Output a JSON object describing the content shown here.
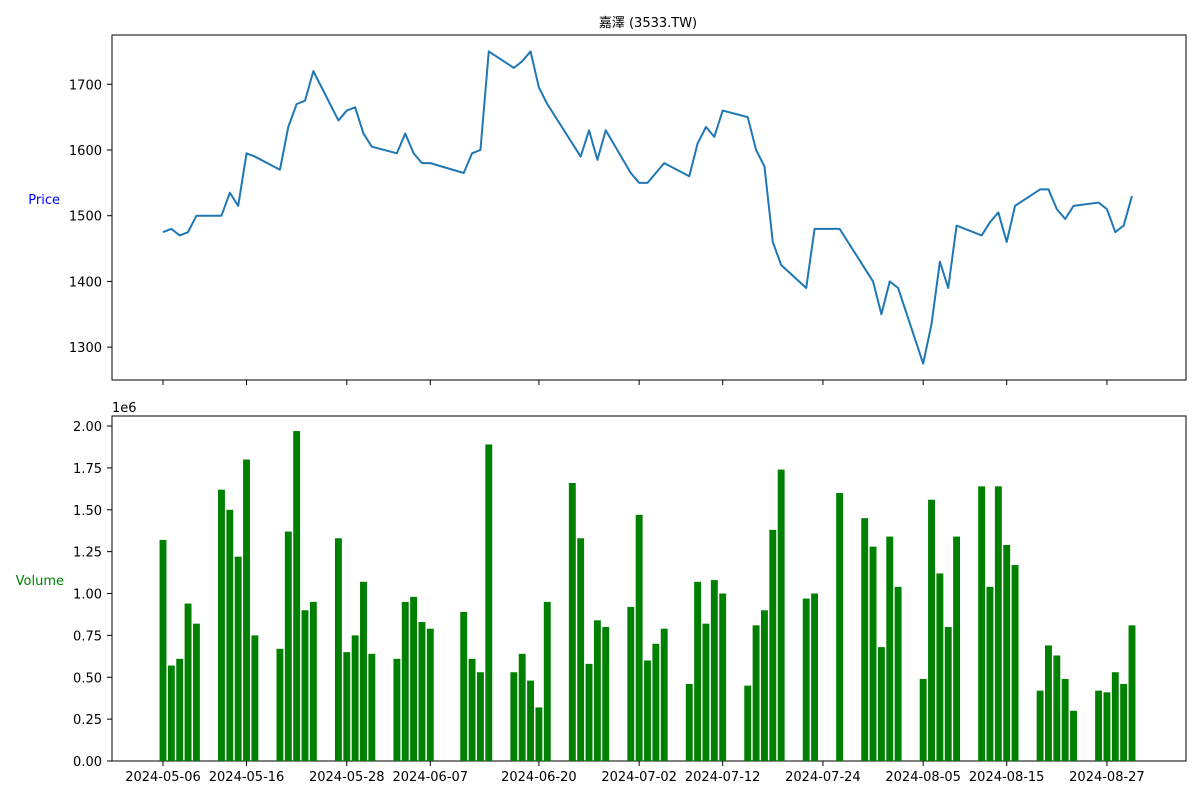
{
  "chart_data": [
    {
      "type": "line",
      "title": "嘉澤 (3533.TW)",
      "ylabel": "Price",
      "ylabel_color": "#0000ff",
      "line_color": "#1f77b4",
      "ylim": [
        1250,
        1775
      ],
      "yticks": [
        1300,
        1400,
        1500,
        1600,
        1700
      ],
      "x": [
        "2024-05-06",
        "2024-05-07",
        "2024-05-08",
        "2024-05-09",
        "2024-05-10",
        "2024-05-13",
        "2024-05-14",
        "2024-05-15",
        "2024-05-16",
        "2024-05-17",
        "2024-05-20",
        "2024-05-21",
        "2024-05-22",
        "2024-05-23",
        "2024-05-24",
        "2024-05-27",
        "2024-05-28",
        "2024-05-29",
        "2024-05-30",
        "2024-05-31",
        "2024-06-03",
        "2024-06-04",
        "2024-06-05",
        "2024-06-06",
        "2024-06-07",
        "2024-06-11",
        "2024-06-12",
        "2024-06-13",
        "2024-06-14",
        "2024-06-17",
        "2024-06-18",
        "2024-06-19",
        "2024-06-20",
        "2024-06-21",
        "2024-06-24",
        "2024-06-25",
        "2024-06-26",
        "2024-06-27",
        "2024-06-28",
        "2024-07-01",
        "2024-07-02",
        "2024-07-03",
        "2024-07-04",
        "2024-07-05",
        "2024-07-08",
        "2024-07-09",
        "2024-07-10",
        "2024-07-11",
        "2024-07-12",
        "2024-07-15",
        "2024-07-16",
        "2024-07-17",
        "2024-07-18",
        "2024-07-19",
        "2024-07-22",
        "2024-07-23",
        "2024-07-26",
        "2024-07-29",
        "2024-07-30",
        "2024-07-31",
        "2024-08-01",
        "2024-08-02",
        "2024-08-05",
        "2024-08-06",
        "2024-08-07",
        "2024-08-08",
        "2024-08-09",
        "2024-08-12",
        "2024-08-13",
        "2024-08-14",
        "2024-08-15",
        "2024-08-16",
        "2024-08-19",
        "2024-08-20",
        "2024-08-21",
        "2024-08-22",
        "2024-08-23",
        "2024-08-26",
        "2024-08-27",
        "2024-08-28",
        "2024-08-29",
        "2024-08-30"
      ],
      "values": [
        1475,
        1480,
        1470,
        1475,
        1500,
        1500,
        1535,
        1515,
        1595,
        1590,
        1570,
        1635,
        1670,
        1675,
        1720,
        1645,
        1660,
        1665,
        1625,
        1605,
        1595,
        1625,
        1595,
        1580,
        1580,
        1565,
        1595,
        1600,
        1750,
        1725,
        1735,
        1750,
        1695,
        1670,
        1610,
        1590,
        1630,
        1585,
        1630,
        1565,
        1550,
        1550,
        1565,
        1580,
        1560,
        1610,
        1635,
        1620,
        1660,
        1650,
        1600,
        1575,
        1460,
        1425,
        1390,
        1480,
        1480,
        1420,
        1400,
        1350,
        1400,
        1390,
        1275,
        1335,
        1430,
        1390,
        1485,
        1470,
        1490,
        1505,
        1460,
        1515,
        1540,
        1540,
        1510,
        1495,
        1515,
        1520,
        1510,
        1475,
        1485,
        1530
      ],
      "xticks": [
        "2024-05-06",
        "2024-05-16",
        "2024-05-28",
        "2024-06-07",
        "2024-06-20",
        "2024-07-02",
        "2024-07-12",
        "2024-07-24",
        "2024-08-05",
        "2024-08-15",
        "2024-08-27"
      ]
    },
    {
      "type": "bar",
      "ylabel": "Volume",
      "ylabel_color": "#008000",
      "bar_color": "#008000",
      "offset_label": "1e6",
      "ylim": [
        0,
        2.06
      ],
      "yticks": [
        0.0,
        0.25,
        0.5,
        0.75,
        1.0,
        1.25,
        1.5,
        1.75,
        2.0
      ],
      "ytick_labels": [
        "0.00",
        "0.25",
        "0.50",
        "0.75",
        "1.00",
        "1.25",
        "1.50",
        "1.75",
        "2.00"
      ],
      "unit": 1000000,
      "x_same_as_price": true,
      "values": [
        1.32,
        0.57,
        0.61,
        0.94,
        0.82,
        1.62,
        1.5,
        1.22,
        1.8,
        0.75,
        0.67,
        1.37,
        1.97,
        0.9,
        0.95,
        1.33,
        0.65,
        0.75,
        1.07,
        0.64,
        0.61,
        0.95,
        0.98,
        0.83,
        0.79,
        0.89,
        0.61,
        0.53,
        1.89,
        0.53,
        0.64,
        0.48,
        0.32,
        0.95,
        1.66,
        1.33,
        0.58,
        0.84,
        0.8,
        0.92,
        1.47,
        0.6,
        0.7,
        0.79,
        0.46,
        1.07,
        0.82,
        1.08,
        1.0,
        0.45,
        0.81,
        0.9,
        1.38,
        1.74,
        0.97,
        1.0,
        1.6,
        1.45,
        1.28,
        0.68,
        1.34,
        1.04,
        0.49,
        1.56,
        1.12,
        0.8,
        1.34,
        1.64,
        1.04,
        1.64,
        1.29,
        1.17,
        0.42,
        0.69,
        0.63,
        0.49,
        0.3,
        0.42,
        0.41,
        0.53,
        0.46,
        0.81
      ]
    }
  ]
}
